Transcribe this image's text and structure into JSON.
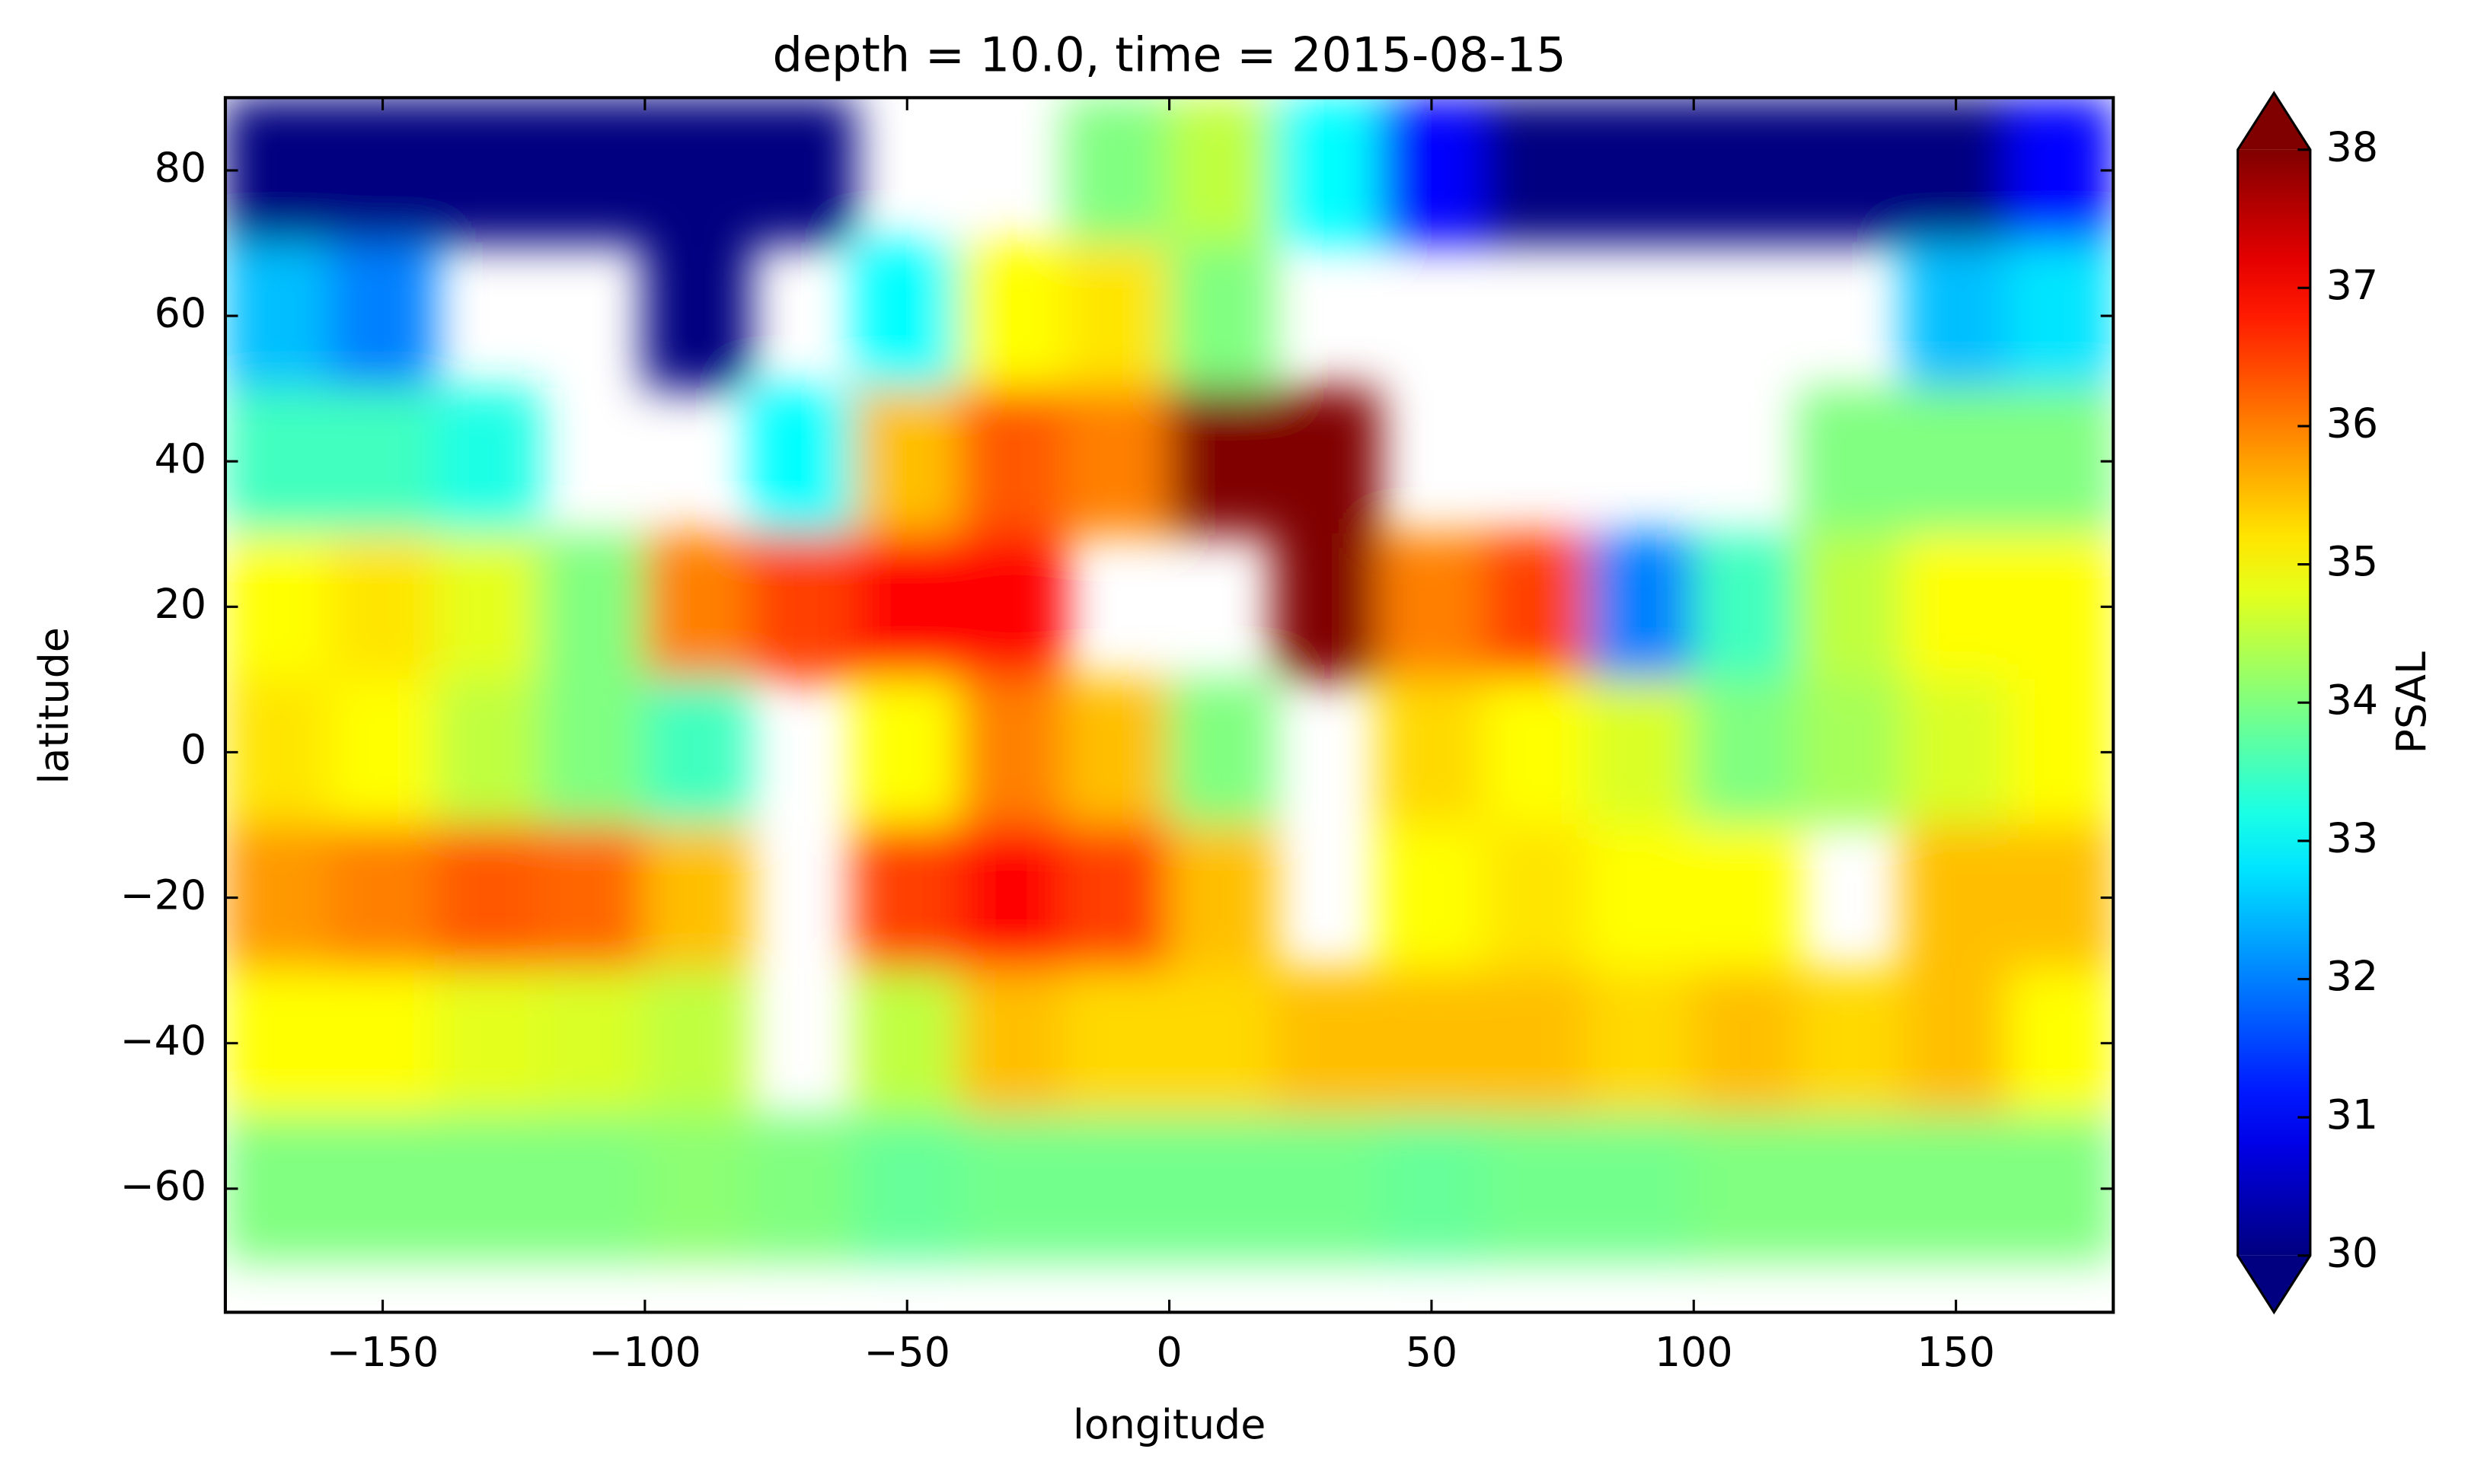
{
  "chart_data": {
    "type": "heatmap",
    "title": "depth = 10.0, time = 2015-08-15",
    "xlabel": "longitude",
    "ylabel": "latitude",
    "colorbar_label": "PSAL",
    "colormap": "jet",
    "xlim": [
      -180,
      180
    ],
    "ylim": [
      -77,
      90
    ],
    "xticks": [
      {
        "value": -150,
        "label": "−150"
      },
      {
        "value": -100,
        "label": "−100"
      },
      {
        "value": -50,
        "label": "−50"
      },
      0,
      50,
      100,
      150
    ],
    "yticks": [
      {
        "value": -60,
        "label": "−60"
      },
      {
        "value": -40,
        "label": "−40"
      },
      {
        "value": -20,
        "label": "−20"
      },
      0,
      20,
      40,
      60,
      80
    ],
    "clim": [
      30,
      38
    ],
    "cticks": [
      30,
      31,
      32,
      33,
      34,
      35,
      36,
      37,
      38
    ],
    "x": [
      -170,
      -150,
      -130,
      -110,
      -90,
      -70,
      -50,
      -30,
      -10,
      10,
      30,
      50,
      70,
      90,
      110,
      130,
      150,
      170
    ],
    "y": [
      80,
      60,
      40,
      20,
      0,
      -20,
      -40,
      -60
    ],
    "z": [
      [
        30,
        30,
        30,
        30,
        30,
        30,
        null,
        null,
        34,
        34.5,
        33,
        31,
        30,
        30,
        30,
        30,
        30,
        31
      ],
      [
        32.5,
        32,
        null,
        null,
        30,
        null,
        33,
        35,
        35.2,
        34,
        null,
        null,
        null,
        null,
        null,
        null,
        32.5,
        32.8
      ],
      [
        33.5,
        33.5,
        33.2,
        null,
        null,
        33,
        35.5,
        36.3,
        36,
        38,
        38,
        null,
        null,
        null,
        null,
        34,
        34,
        34
      ],
      [
        35,
        35.2,
        34.8,
        34,
        36,
        36.5,
        37,
        37,
        null,
        null,
        38,
        36,
        36.5,
        32,
        33.5,
        34.5,
        35,
        35
      ],
      [
        35.2,
        35,
        34.5,
        34,
        33.5,
        null,
        35,
        36,
        35.5,
        34,
        null,
        35.3,
        35,
        34.7,
        34,
        34.3,
        34.7,
        35
      ],
      [
        35.8,
        36,
        36.3,
        36.2,
        35.5,
        null,
        36.5,
        37,
        36.5,
        35.5,
        null,
        35,
        35.2,
        35,
        35,
        null,
        35.5,
        35.5
      ],
      [
        35,
        35,
        34.8,
        34.7,
        34.5,
        null,
        34.5,
        35.5,
        35.3,
        35.3,
        35.5,
        35.5,
        35.5,
        35.3,
        35.5,
        35.3,
        35.5,
        35
      ],
      [
        34,
        34,
        34,
        34,
        34.1,
        34,
        33.8,
        33.9,
        33.9,
        33.9,
        33.9,
        33.8,
        33.9,
        33.9,
        34,
        34,
        34,
        34
      ]
    ]
  }
}
